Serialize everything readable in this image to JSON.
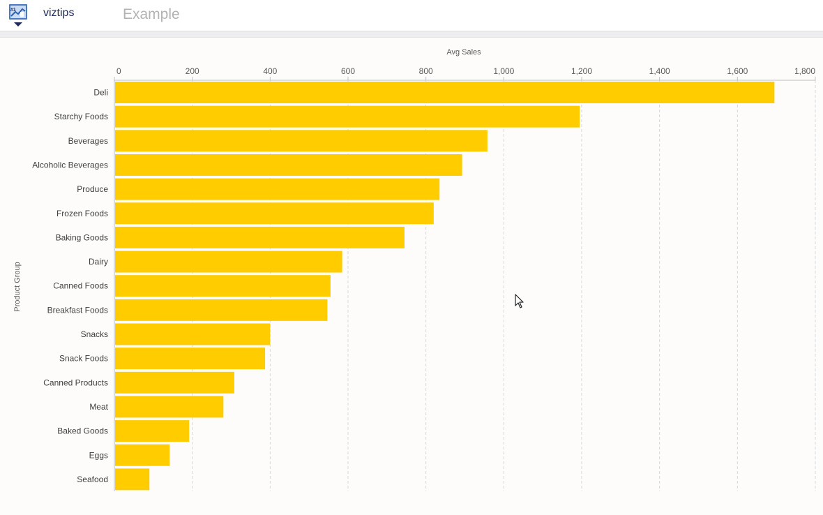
{
  "header": {
    "app_name": "viztips",
    "logo_badge": "#1",
    "sheet_title": "Example"
  },
  "colors": {
    "bar": "#ffcc00",
    "grid": "#d9d9d9",
    "axis": "#bfbfbf",
    "header_text": "#1f2a5a"
  },
  "chart_data": {
    "type": "bar",
    "orientation": "horizontal",
    "xlabel": "Avg Sales",
    "ylabel": "Product Group",
    "xlim": [
      0,
      1800
    ],
    "ticks": [
      0,
      200,
      400,
      600,
      800,
      1000,
      1200,
      1400,
      1600,
      1800
    ],
    "tick_labels": [
      "0",
      "200",
      "400",
      "600",
      "800",
      "1,000",
      "1,200",
      "1,400",
      "1,600",
      "1,800"
    ],
    "grid": true,
    "categories": [
      "Deli",
      "Starchy Foods",
      "Beverages",
      "Alcoholic Beverages",
      "Produce",
      "Frozen Foods",
      "Baking Goods",
      "Dairy",
      "Canned Foods",
      "Breakfast Foods",
      "Snacks",
      "Snack Foods",
      "Canned Products",
      "Meat",
      "Baked Goods",
      "Eggs",
      "Seafood"
    ],
    "values": [
      1695,
      1195,
      958,
      893,
      835,
      820,
      745,
      585,
      555,
      547,
      400,
      387,
      308,
      280,
      192,
      142,
      90
    ]
  }
}
